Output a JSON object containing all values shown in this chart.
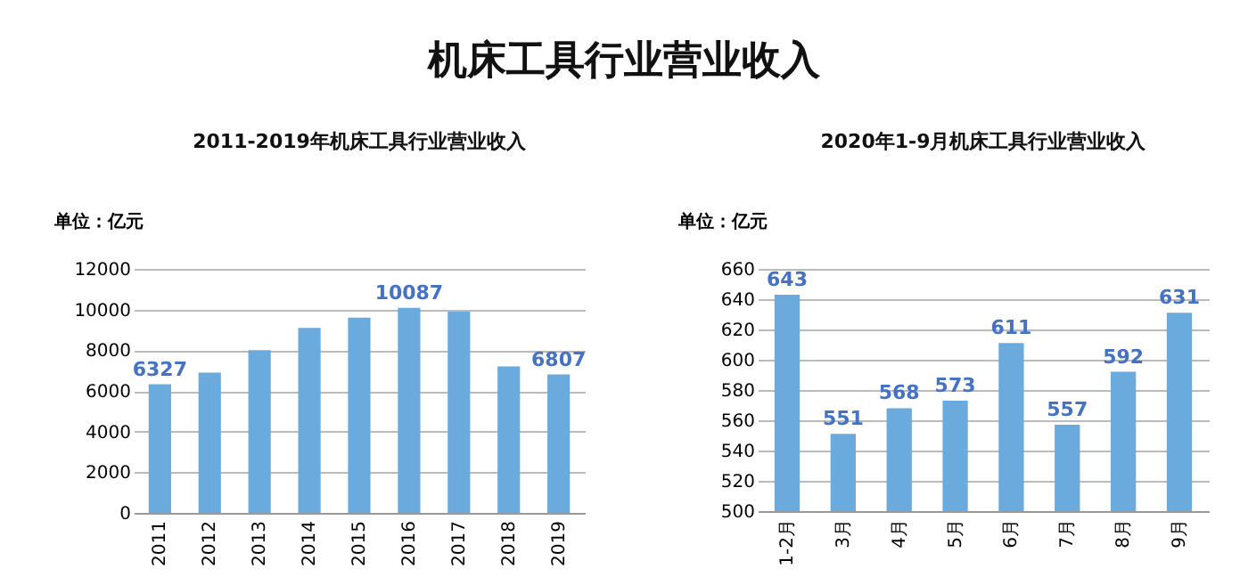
{
  "chart_data": [
    {
      "type": "other",
      "title": "机床工具行业营业收入"
    },
    {
      "type": "bar",
      "title": "2011-2019年机床工具行业营业收入",
      "ylabel": "单位：亿元",
      "categories": [
        "2011",
        "2012",
        "2013",
        "2014",
        "2015",
        "2016",
        "2017",
        "2018",
        "2019"
      ],
      "values": [
        6327,
        6900,
        8000,
        9100,
        9600,
        10087,
        9900,
        7200,
        6807
      ],
      "color": "#6aaadc",
      "value_labels": [
        "6327",
        null,
        null,
        null,
        null,
        "10087",
        null,
        null,
        "6807"
      ],
      "ylim": [
        0,
        12000
      ],
      "yticks": [
        0,
        2000,
        4000,
        6000,
        8000,
        10000,
        12000
      ],
      "grid": "y"
    },
    {
      "type": "bar",
      "title": "2020年1-9月机床工具行业营业收入",
      "ylabel": "单位：亿元",
      "categories": [
        "1-2月",
        "3月",
        "4月",
        "5月",
        "6月",
        "7月",
        "8月",
        "9月"
      ],
      "values": [
        643,
        551,
        568,
        573,
        611,
        557,
        592,
        631
      ],
      "color": "#6aaadc",
      "data_labels": true,
      "ylim": [
        500,
        660
      ],
      "yticks": [
        500,
        520,
        540,
        560,
        580,
        600,
        620,
        640,
        660
      ],
      "grid": "y"
    }
  ]
}
